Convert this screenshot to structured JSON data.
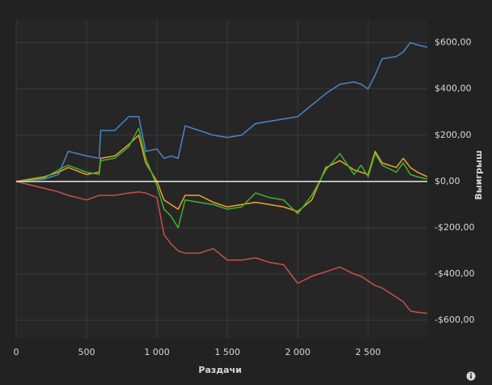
{
  "chart_data": {
    "type": "line",
    "x_label": "Раздачи",
    "y_label": "Выигрыш",
    "x": [
      0,
      100,
      200,
      300,
      370,
      500,
      590,
      600,
      700,
      800,
      870,
      920,
      1000,
      1050,
      1100,
      1150,
      1200,
      1300,
      1400,
      1500,
      1600,
      1700,
      1800,
      1900,
      2000,
      2100,
      2200,
      2300,
      2400,
      2450,
      2500,
      2550,
      2600,
      2700,
      2750,
      2800,
      2850,
      2920
    ],
    "series": [
      {
        "color": "#4a86c8",
        "values": [
          0,
          5,
          10,
          30,
          130,
          110,
          100,
          220,
          220,
          280,
          280,
          130,
          140,
          100,
          110,
          100,
          240,
          220,
          200,
          190,
          200,
          250,
          260,
          270,
          280,
          330,
          380,
          420,
          430,
          420,
          400,
          460,
          530,
          540,
          560,
          600,
          590,
          580
        ]
      },
      {
        "color": "#f0a030",
        "values": [
          0,
          10,
          20,
          40,
          60,
          30,
          40,
          100,
          110,
          160,
          200,
          80,
          0,
          -80,
          -100,
          -120,
          -60,
          -60,
          -90,
          -110,
          -100,
          -90,
          -100,
          -110,
          -130,
          -80,
          60,
          90,
          50,
          40,
          30,
          130,
          80,
          60,
          100,
          60,
          40,
          20
        ]
      },
      {
        "color": "#3fb22e",
        "values": [
          0,
          5,
          15,
          50,
          70,
          40,
          30,
          90,
          100,
          150,
          230,
          100,
          -20,
          -120,
          -150,
          -200,
          -80,
          -90,
          -100,
          -120,
          -110,
          -50,
          -70,
          -80,
          -140,
          -60,
          50,
          120,
          30,
          70,
          20,
          120,
          70,
          40,
          80,
          30,
          20,
          10
        ]
      },
      {
        "color": "#c8504a",
        "values": [
          0,
          -15,
          -30,
          -45,
          -60,
          -80,
          -60,
          -60,
          -60,
          -50,
          -45,
          -50,
          -70,
          -230,
          -270,
          -300,
          -310,
          -310,
          -290,
          -340,
          -340,
          -330,
          -350,
          -360,
          -440,
          -410,
          -390,
          -370,
          -400,
          -410,
          -430,
          -450,
          -460,
          -500,
          -520,
          -560,
          -565,
          -570
        ]
      }
    ],
    "xlim": [
      0,
      2920
    ],
    "ylim": [
      -680,
      700
    ],
    "xticks": [
      0,
      500,
      {
        "value": 1000,
        "label": "1 000"
      },
      {
        "value": 1500,
        "label": "1 500"
      },
      {
        "value": 2000,
        "label": "2 000"
      },
      {
        "value": 2500,
        "label": "2 500"
      }
    ],
    "yticks": [
      {
        "value": -600,
        "label": "-$600,00"
      },
      {
        "value": -400,
        "label": "-$400,00"
      },
      {
        "value": -200,
        "label": "-$200,00"
      },
      {
        "value": 0,
        "label": "$0,00"
      },
      {
        "value": 200,
        "label": "$200,00"
      },
      {
        "value": 400,
        "label": "$400,00"
      },
      {
        "value": 600,
        "label": "$600,00"
      }
    ],
    "grid": true
  }
}
